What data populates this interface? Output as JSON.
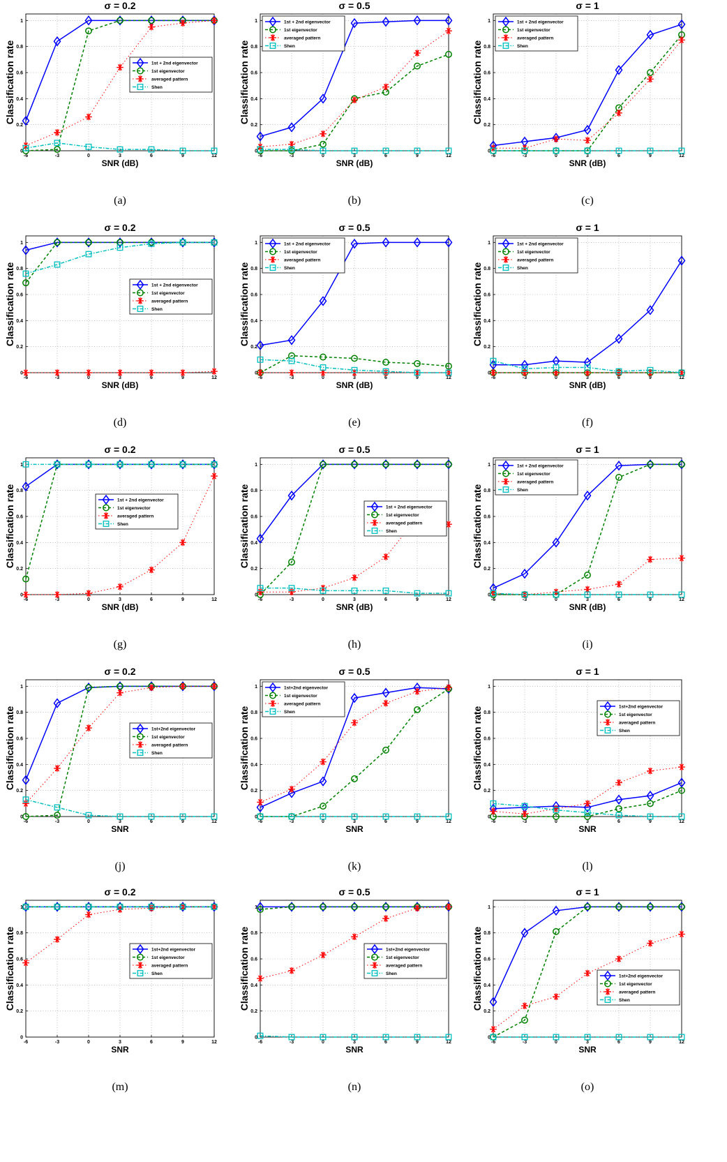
{
  "figure": {
    "common": {
      "ylabel": "Classification rate",
      "xticks": [
        "-6",
        "-3",
        "0",
        "3",
        "6",
        "9",
        "12"
      ],
      "yticks": [
        "0",
        "0.2",
        "0.4",
        "0.6",
        "0.8",
        "1"
      ]
    },
    "colors": {
      "pair": "#0000ff",
      "first": "#008000",
      "averaged": "#ff0000",
      "shen": "#00bfbf",
      "grid": "#9a9a9a"
    },
    "legend_position_words": [
      "center-right",
      "top-left",
      "top-left",
      "center-right",
      "top-left",
      "top-left",
      "center",
      "center-right",
      "top-left",
      "center-right",
      "top-left",
      "top-right",
      "center-right",
      "center-right",
      "bottom-right"
    ]
  },
  "chart_data": [
    {
      "caption": "(a)",
      "title": "σ = 0.2",
      "xlabel": "SNR (dB)",
      "type": "line",
      "x": [
        -6,
        -3,
        0,
        3,
        6,
        9,
        12
      ],
      "ylim": [
        0,
        1.05
      ],
      "grid": true,
      "legend": "center-right",
      "series": [
        {
          "name": "1st + 2nd eigenvector",
          "marker": "diamond",
          "values": [
            0.23,
            0.84,
            1,
            1,
            1,
            1,
            1
          ]
        },
        {
          "name": "1st eigenvector",
          "marker": "circle",
          "values": [
            0,
            0.01,
            0.92,
            1,
            1,
            1,
            1
          ]
        },
        {
          "name": "averaged pattern",
          "marker": "asterisk",
          "values": [
            0.04,
            0.14,
            0.26,
            0.64,
            0.95,
            0.98,
            1
          ]
        },
        {
          "name": "Shen",
          "marker": "square",
          "values": [
            0.02,
            0.06,
            0.03,
            0.01,
            0.01,
            0,
            0
          ]
        }
      ]
    },
    {
      "caption": "(b)",
      "title": "σ = 0.5",
      "xlabel": "SNR (dB)",
      "type": "line",
      "x": [
        -6,
        -3,
        0,
        3,
        6,
        9,
        12
      ],
      "ylim": [
        0,
        1.05
      ],
      "grid": true,
      "legend": "top-left",
      "series": [
        {
          "name": "1st + 2nd eigenvector",
          "marker": "diamond",
          "values": [
            0.11,
            0.18,
            0.4,
            0.98,
            0.99,
            1,
            1
          ]
        },
        {
          "name": "1st eigenvector",
          "marker": "circle",
          "values": [
            0,
            0,
            0.05,
            0.4,
            0.45,
            0.65,
            0.74
          ]
        },
        {
          "name": "averaged pattern",
          "marker": "asterisk",
          "values": [
            0.03,
            0.05,
            0.13,
            0.39,
            0.49,
            0.75,
            0.92
          ]
        },
        {
          "name": "Shen",
          "marker": "square",
          "values": [
            0.01,
            0.01,
            0,
            0,
            0,
            0,
            0
          ]
        }
      ]
    },
    {
      "caption": "(c)",
      "title": "σ = 1",
      "xlabel": "SNR (dB)",
      "type": "line",
      "x": [
        -6,
        -3,
        0,
        3,
        6,
        9,
        12
      ],
      "ylim": [
        0,
        1.05
      ],
      "grid": true,
      "legend": "top-left",
      "series": [
        {
          "name": "1st + 2nd eigenvector",
          "marker": "diamond",
          "values": [
            0.04,
            0.07,
            0.1,
            0.16,
            0.62,
            0.89,
            0.97
          ]
        },
        {
          "name": "1st eigenvector",
          "marker": "circle",
          "values": [
            0,
            0,
            0,
            0,
            0.33,
            0.6,
            0.89
          ]
        },
        {
          "name": "averaged pattern",
          "marker": "asterisk",
          "values": [
            0.02,
            0.02,
            0.09,
            0.08,
            0.29,
            0.55,
            0.85
          ]
        },
        {
          "name": "Shen",
          "marker": "square",
          "values": [
            0,
            0,
            0,
            0,
            0,
            0,
            0
          ]
        }
      ]
    },
    {
      "caption": "(d)",
      "title": "σ = 0.2",
      "xlabel": "SNR (dB)",
      "type": "line",
      "x": [
        -6,
        -3,
        0,
        3,
        6,
        9,
        12
      ],
      "ylim": [
        0,
        1.05
      ],
      "grid": true,
      "legend": "center-right",
      "series": [
        {
          "name": "1st + 2nd eigenvector",
          "marker": "diamond",
          "values": [
            0.94,
            1,
            1,
            1,
            1,
            1,
            1
          ]
        },
        {
          "name": "1st eigenvector",
          "marker": "circle",
          "values": [
            0.69,
            1,
            1,
            1,
            1,
            1,
            1
          ]
        },
        {
          "name": "averaged pattern",
          "marker": "asterisk",
          "values": [
            0,
            0,
            0,
            0,
            0,
            0,
            0.01
          ]
        },
        {
          "name": "Shen",
          "marker": "square",
          "values": [
            0.76,
            0.83,
            0.91,
            0.96,
            0.99,
            1,
            1
          ]
        }
      ]
    },
    {
      "caption": "(e)",
      "title": "σ = 0.5",
      "xlabel": "SNR (dB)",
      "type": "line",
      "x": [
        -6,
        -3,
        0,
        3,
        6,
        9,
        12
      ],
      "ylim": [
        0,
        1.05
      ],
      "grid": true,
      "legend": "top-left",
      "series": [
        {
          "name": "1st + 2nd eigenvector",
          "marker": "diamond",
          "values": [
            0.21,
            0.25,
            0.55,
            0.99,
            1,
            1,
            1
          ]
        },
        {
          "name": "1st eigenvector",
          "marker": "circle",
          "values": [
            0,
            0.13,
            0.12,
            0.11,
            0.08,
            0.07,
            0.05
          ]
        },
        {
          "name": "averaged pattern",
          "marker": "asterisk",
          "values": [
            0,
            0,
            0,
            0,
            0,
            0,
            0
          ]
        },
        {
          "name": "Shen",
          "marker": "square",
          "values": [
            0.1,
            0.09,
            0.04,
            0.02,
            0.01,
            0,
            0
          ]
        }
      ]
    },
    {
      "caption": "(f)",
      "title": "σ = 1",
      "xlabel": "SNR (dB)",
      "type": "line",
      "x": [
        -6,
        -3,
        0,
        3,
        6,
        9,
        12
      ],
      "ylim": [
        0,
        1.05
      ],
      "grid": true,
      "legend": "top-left",
      "series": [
        {
          "name": "1st + 2nd eigenvector",
          "marker": "diamond",
          "values": [
            0.06,
            0.06,
            0.09,
            0.08,
            0.26,
            0.48,
            0.86
          ]
        },
        {
          "name": "1st eigenvector",
          "marker": "circle",
          "values": [
            0,
            0,
            0,
            0,
            0,
            0,
            0
          ]
        },
        {
          "name": "averaged pattern",
          "marker": "asterisk",
          "values": [
            0,
            0,
            0,
            0,
            0,
            0,
            0
          ]
        },
        {
          "name": "Shen",
          "marker": "square",
          "values": [
            0.09,
            0.03,
            0.04,
            0.04,
            0.01,
            0.02,
            0
          ]
        }
      ]
    },
    {
      "caption": "(g)",
      "title": "σ = 0.2",
      "xlabel": "SNR (dB)",
      "type": "line",
      "x": [
        -6,
        -3,
        0,
        3,
        6,
        9,
        12
      ],
      "ylim": [
        0,
        1.05
      ],
      "grid": true,
      "legend": "center",
      "series": [
        {
          "name": "1st + 2nd eigenvector",
          "marker": "diamond",
          "values": [
            0.83,
            1,
            1,
            1,
            1,
            1,
            1
          ]
        },
        {
          "name": "1st eigenvector",
          "marker": "circle",
          "values": [
            0.12,
            1,
            1,
            1,
            1,
            1,
            1
          ]
        },
        {
          "name": "averaged pattern",
          "marker": "asterisk",
          "values": [
            0,
            0,
            0.01,
            0.06,
            0.19,
            0.4,
            0.91
          ]
        },
        {
          "name": "Shen",
          "marker": "square",
          "values": [
            1,
            1,
            1,
            1,
            1,
            1,
            1
          ]
        }
      ]
    },
    {
      "caption": "(h)",
      "title": "σ = 0.5",
      "xlabel": "SNR (dB)",
      "type": "line",
      "x": [
        -6,
        -3,
        0,
        3,
        6,
        9,
        12
      ],
      "ylim": [
        0,
        1.05
      ],
      "grid": true,
      "legend": "center-right",
      "series": [
        {
          "name": "1st + 2nd eigenvector",
          "marker": "diamond",
          "values": [
            0.43,
            0.76,
            1,
            1,
            1,
            1,
            1
          ]
        },
        {
          "name": "1st eigenvector",
          "marker": "circle",
          "values": [
            0,
            0.25,
            1,
            1,
            1,
            1,
            1
          ]
        },
        {
          "name": "averaged pattern",
          "marker": "asterisk",
          "values": [
            0.02,
            0.02,
            0.05,
            0.13,
            0.29,
            0.59,
            0.54
          ]
        },
        {
          "name": "Shen",
          "marker": "square",
          "values": [
            0.05,
            0.05,
            0.03,
            0.03,
            0.03,
            0.01,
            0.01
          ]
        }
      ]
    },
    {
      "caption": "(i)",
      "title": "σ = 1",
      "xlabel": "SNR (dB)",
      "type": "line",
      "x": [
        -6,
        -3,
        0,
        3,
        6,
        9,
        12
      ],
      "ylim": [
        0,
        1.05
      ],
      "grid": true,
      "legend": "top-left",
      "series": [
        {
          "name": "1st + 2nd eigenvector",
          "marker": "diamond",
          "values": [
            0.05,
            0.16,
            0.4,
            0.76,
            0.99,
            1,
            1
          ]
        },
        {
          "name": "1st eigenvector",
          "marker": "circle",
          "values": [
            0,
            0,
            0,
            0.15,
            0.9,
            1,
            1
          ]
        },
        {
          "name": "averaged pattern",
          "marker": "asterisk",
          "values": [
            0.01,
            0,
            0.02,
            0.04,
            0.08,
            0.27,
            0.28
          ]
        },
        {
          "name": "Shen",
          "marker": "square",
          "values": [
            0.01,
            0,
            0,
            0,
            0,
            0,
            0
          ]
        }
      ]
    },
    {
      "caption": "(j)",
      "title": "σ = 0.2",
      "xlabel": "SNR",
      "type": "line",
      "x": [
        -6,
        -3,
        0,
        3,
        6,
        9,
        12
      ],
      "ylim": [
        0,
        1.05
      ],
      "grid": true,
      "legend": "center-right",
      "series": [
        {
          "name": "1st+2nd eigenvector",
          "marker": "diamond",
          "values": [
            0.28,
            0.87,
            0.99,
            1,
            1,
            1,
            1
          ]
        },
        {
          "name": "1st eigenvector",
          "marker": "circle",
          "values": [
            0,
            0.01,
            0.99,
            1,
            1,
            1,
            1
          ]
        },
        {
          "name": "averaged pattern",
          "marker": "asterisk",
          "values": [
            0.1,
            0.37,
            0.68,
            0.95,
            0.99,
            1,
            1
          ]
        },
        {
          "name": "Shen",
          "marker": "square",
          "values": [
            0.13,
            0.07,
            0.01,
            0,
            0,
            0,
            0
          ]
        }
      ]
    },
    {
      "caption": "(k)",
      "title": "σ = 0.5",
      "xlabel": "SNR",
      "type": "line",
      "x": [
        -6,
        -3,
        0,
        3,
        6,
        9,
        12
      ],
      "ylim": [
        0,
        1.05
      ],
      "grid": true,
      "legend": "top-left",
      "series": [
        {
          "name": "1st+2nd eigenvector",
          "marker": "diamond",
          "values": [
            0.07,
            0.18,
            0.27,
            0.91,
            0.95,
            0.99,
            0.98
          ]
        },
        {
          "name": "1st eigenvector",
          "marker": "circle",
          "values": [
            0,
            0,
            0.08,
            0.29,
            0.51,
            0.82,
            0.98
          ]
        },
        {
          "name": "averaged pattern",
          "marker": "asterisk",
          "values": [
            0.11,
            0.21,
            0.42,
            0.72,
            0.87,
            0.96,
            0.99
          ]
        },
        {
          "name": "Shen",
          "marker": "square",
          "values": [
            0,
            0,
            0,
            0,
            0,
            0,
            0
          ]
        }
      ]
    },
    {
      "caption": "(l)",
      "title": "σ = 1",
      "xlabel": "SNR",
      "type": "line",
      "x": [
        -6,
        -3,
        0,
        3,
        6,
        9,
        12
      ],
      "ylim": [
        0,
        1.05
      ],
      "grid": true,
      "legend": "top-right",
      "series": [
        {
          "name": "1st+2nd eigenvector",
          "marker": "diamond",
          "values": [
            0.06,
            0.07,
            0.08,
            0.07,
            0.13,
            0.16,
            0.26
          ]
        },
        {
          "name": "1st eigenvector",
          "marker": "circle",
          "values": [
            0,
            0,
            0,
            0,
            0.06,
            0.1,
            0.2
          ]
        },
        {
          "name": "averaged pattern",
          "marker": "asterisk",
          "values": [
            0.04,
            0.02,
            0.06,
            0.1,
            0.26,
            0.35,
            0.38
          ]
        },
        {
          "name": "Shen",
          "marker": "square",
          "values": [
            0.1,
            0.08,
            0.05,
            0.03,
            0.01,
            0,
            0
          ]
        }
      ]
    },
    {
      "caption": "(m)",
      "title": "σ = 0.2",
      "xlabel": "SNR",
      "type": "line",
      "x": [
        -6,
        -3,
        0,
        3,
        6,
        9,
        12
      ],
      "ylim": [
        0,
        1.05
      ],
      "grid": true,
      "legend": "center-right",
      "series": [
        {
          "name": "1st+2nd eigenvector",
          "marker": "diamond",
          "values": [
            1,
            1,
            1,
            1,
            1,
            1,
            1
          ]
        },
        {
          "name": "1st eigenvector",
          "marker": "circle",
          "values": [
            1,
            1,
            1,
            1,
            1,
            1,
            1
          ]
        },
        {
          "name": "averaged pattern",
          "marker": "asterisk",
          "values": [
            0.57,
            0.75,
            0.94,
            0.98,
            0.99,
            1,
            1
          ]
        },
        {
          "name": "Shen",
          "marker": "square",
          "values": [
            1,
            1,
            1,
            1,
            1,
            1,
            1
          ]
        }
      ]
    },
    {
      "caption": "(n)",
      "title": "σ = 0.5",
      "xlabel": "SNR",
      "type": "line",
      "x": [
        -6,
        -3,
        0,
        3,
        6,
        9,
        12
      ],
      "ylim": [
        0,
        1.05
      ],
      "grid": true,
      "legend": "center-right",
      "series": [
        {
          "name": "1st+2nd eigenvector",
          "marker": "diamond",
          "values": [
            1,
            1,
            1,
            1,
            1,
            1,
            1
          ]
        },
        {
          "name": "1st eigenvector",
          "marker": "circle",
          "values": [
            0.98,
            1,
            1,
            1,
            1,
            1,
            1
          ]
        },
        {
          "name": "averaged pattern",
          "marker": "asterisk",
          "values": [
            0.45,
            0.51,
            0.63,
            0.77,
            0.91,
            0.99,
            1
          ]
        },
        {
          "name": "Shen",
          "marker": "square",
          "values": [
            0.01,
            0,
            0,
            0,
            0,
            0,
            0
          ]
        }
      ]
    },
    {
      "caption": "(o)",
      "title": "σ = 1",
      "xlabel": "SNR",
      "type": "line",
      "x": [
        -6,
        -3,
        0,
        3,
        6,
        9,
        12
      ],
      "ylim": [
        0,
        1.05
      ],
      "grid": true,
      "legend": "bottom-right",
      "series": [
        {
          "name": "1st+2nd eigenvector",
          "marker": "diamond",
          "values": [
            0.27,
            0.8,
            0.97,
            1,
            1,
            1,
            1
          ]
        },
        {
          "name": "1st eigenvector",
          "marker": "circle",
          "values": [
            0,
            0.13,
            0.81,
            1,
            1,
            1,
            1
          ]
        },
        {
          "name": "averaged pattern",
          "marker": "asterisk",
          "values": [
            0.06,
            0.24,
            0.31,
            0.49,
            0.6,
            0.72,
            0.79
          ]
        },
        {
          "name": "Shen",
          "marker": "square",
          "values": [
            0,
            0,
            0,
            0,
            0,
            0,
            0
          ]
        }
      ]
    }
  ]
}
